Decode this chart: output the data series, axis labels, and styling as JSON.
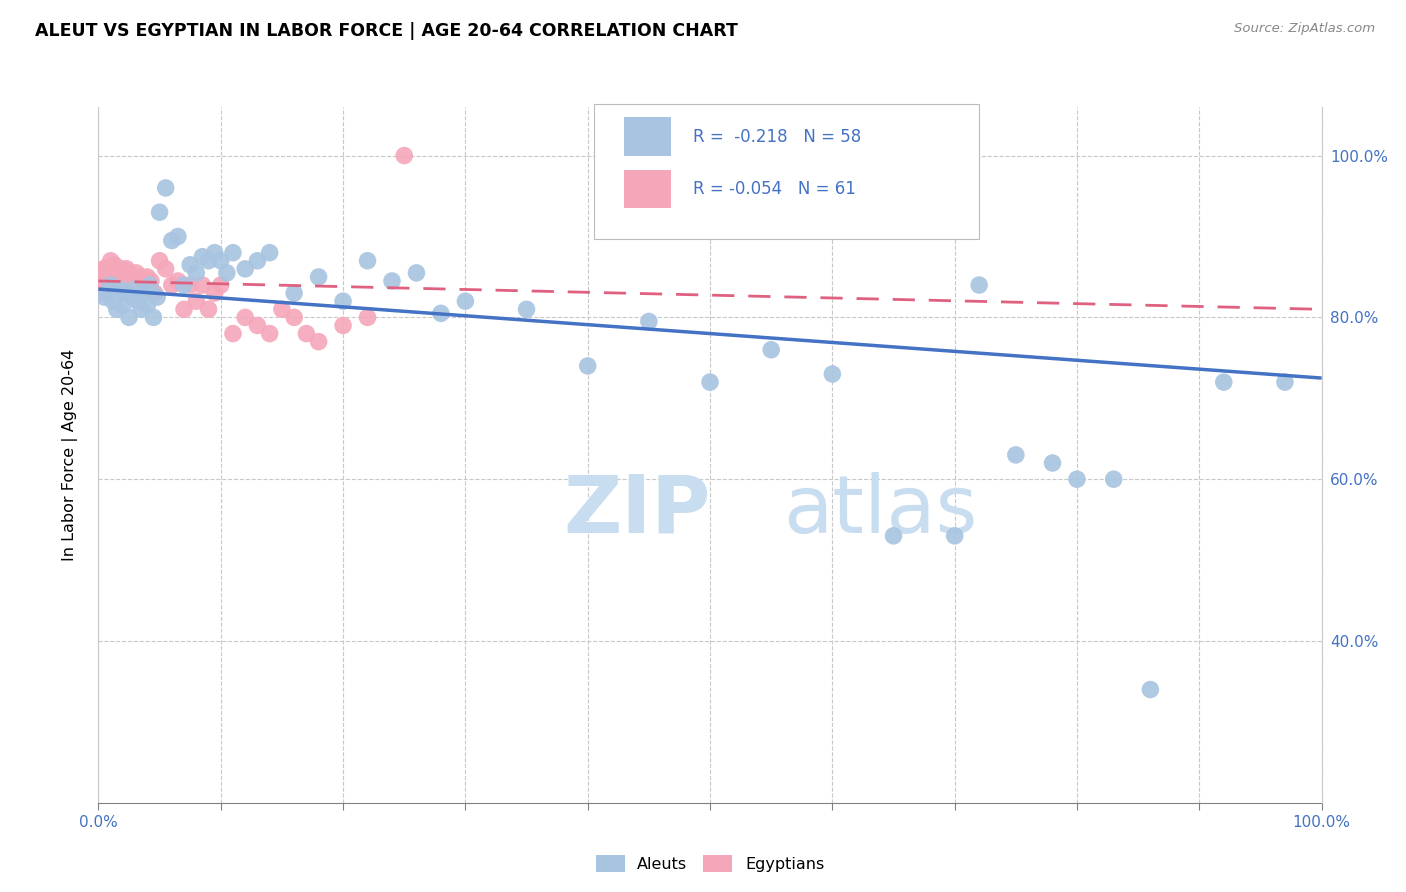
{
  "title": "ALEUT VS EGYPTIAN IN LABOR FORCE | AGE 20-64 CORRELATION CHART",
  "source": "Source: ZipAtlas.com",
  "ylabel": "In Labor Force | Age 20-64",
  "r_aleut": -0.218,
  "n_aleut": 58,
  "r_egyptian": -0.054,
  "n_egyptian": 61,
  "aleut_color": "#a8c4e0",
  "egyptian_color": "#f4a7b9",
  "aleut_line_color": "#4472c4",
  "egyptian_line_color": "#e06080",
  "watermark_zip": "ZIP",
  "watermark_atlas": "atlas",
  "xlim": [
    0.0,
    1.0
  ],
  "ylim": [
    0.2,
    1.06
  ],
  "aleut_x": [
    0.005,
    0.008,
    0.01,
    0.012,
    0.015,
    0.018,
    0.02,
    0.022,
    0.025,
    0.028,
    0.03,
    0.032,
    0.035,
    0.038,
    0.04,
    0.042,
    0.045,
    0.048,
    0.05,
    0.055,
    0.06,
    0.065,
    0.07,
    0.075,
    0.08,
    0.085,
    0.09,
    0.095,
    0.1,
    0.105,
    0.11,
    0.12,
    0.13,
    0.14,
    0.16,
    0.18,
    0.2,
    0.22,
    0.24,
    0.26,
    0.28,
    0.3,
    0.35,
    0.4,
    0.45,
    0.5,
    0.55,
    0.6,
    0.65,
    0.7,
    0.72,
    0.75,
    0.78,
    0.8,
    0.83,
    0.86,
    0.92,
    0.97
  ],
  "aleut_y": [
    0.825,
    0.83,
    0.84,
    0.82,
    0.81,
    0.835,
    0.815,
    0.83,
    0.8,
    0.825,
    0.835,
    0.82,
    0.81,
    0.83,
    0.815,
    0.84,
    0.8,
    0.825,
    0.93,
    0.96,
    0.895,
    0.9,
    0.84,
    0.865,
    0.855,
    0.875,
    0.87,
    0.88,
    0.87,
    0.855,
    0.88,
    0.86,
    0.87,
    0.88,
    0.83,
    0.85,
    0.82,
    0.87,
    0.845,
    0.855,
    0.805,
    0.82,
    0.81,
    0.74,
    0.795,
    0.72,
    0.76,
    0.73,
    0.53,
    0.53,
    0.84,
    0.63,
    0.62,
    0.6,
    0.6,
    0.34,
    0.72,
    0.72
  ],
  "egyptian_x": [
    0.0,
    0.001,
    0.002,
    0.003,
    0.004,
    0.005,
    0.006,
    0.007,
    0.008,
    0.009,
    0.01,
    0.011,
    0.012,
    0.013,
    0.014,
    0.015,
    0.016,
    0.017,
    0.018,
    0.019,
    0.02,
    0.021,
    0.022,
    0.023,
    0.024,
    0.025,
    0.026,
    0.027,
    0.028,
    0.029,
    0.03,
    0.031,
    0.032,
    0.033,
    0.035,
    0.037,
    0.04,
    0.043,
    0.046,
    0.05,
    0.055,
    0.06,
    0.065,
    0.07,
    0.075,
    0.08,
    0.085,
    0.09,
    0.095,
    0.1,
    0.11,
    0.12,
    0.13,
    0.14,
    0.15,
    0.16,
    0.17,
    0.18,
    0.2,
    0.22,
    0.25
  ],
  "egyptian_y": [
    0.84,
    0.85,
    0.855,
    0.845,
    0.86,
    0.83,
    0.86,
    0.855,
    0.84,
    0.85,
    0.87,
    0.845,
    0.855,
    0.865,
    0.84,
    0.86,
    0.85,
    0.855,
    0.84,
    0.86,
    0.855,
    0.84,
    0.85,
    0.86,
    0.83,
    0.855,
    0.84,
    0.85,
    0.83,
    0.845,
    0.84,
    0.855,
    0.83,
    0.84,
    0.85,
    0.84,
    0.85,
    0.845,
    0.83,
    0.87,
    0.86,
    0.84,
    0.845,
    0.81,
    0.84,
    0.82,
    0.84,
    0.81,
    0.83,
    0.84,
    0.78,
    0.8,
    0.79,
    0.78,
    0.81,
    0.8,
    0.78,
    0.77,
    0.79,
    0.8,
    1.0
  ]
}
